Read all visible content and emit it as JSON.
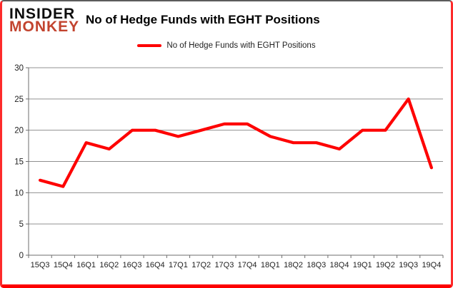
{
  "brand": {
    "line1": "INSIDER",
    "line2": "MONKEY",
    "color": "#c2432e"
  },
  "header": {
    "title": "No of Hedge Funds with EGHT Positions"
  },
  "legend": {
    "label": "No of Hedge Funds with EGHT Positions",
    "swatch_color": "#fe0000"
  },
  "colors": {
    "line": "#fe0000",
    "grid": "#909090",
    "axis": "#6e6e6e",
    "text": "#222222",
    "frame_border": "#fd0000"
  },
  "chart_data": {
    "type": "line",
    "title": "No of Hedge Funds with EGHT Positions",
    "categories": [
      "15Q3",
      "15Q4",
      "16Q1",
      "16Q2",
      "16Q3",
      "16Q4",
      "17Q1",
      "17Q2",
      "17Q3",
      "17Q4",
      "18Q1",
      "18Q2",
      "18Q3",
      "18Q4",
      "19Q1",
      "19Q2",
      "19Q3",
      "19Q4"
    ],
    "series": [
      {
        "name": "No of Hedge Funds with EGHT Positions",
        "color": "#fe0000",
        "values": [
          12,
          11,
          18,
          17,
          20,
          20,
          19,
          20,
          21,
          21,
          19,
          18,
          18,
          17,
          20,
          20,
          25,
          14
        ]
      }
    ],
    "xlabel": "",
    "ylabel": "",
    "ylim": [
      0,
      30
    ],
    "ytick_step": 5,
    "yticks": [
      0,
      5,
      10,
      15,
      20,
      25,
      30
    ],
    "grid": true,
    "legend_position": "top"
  }
}
